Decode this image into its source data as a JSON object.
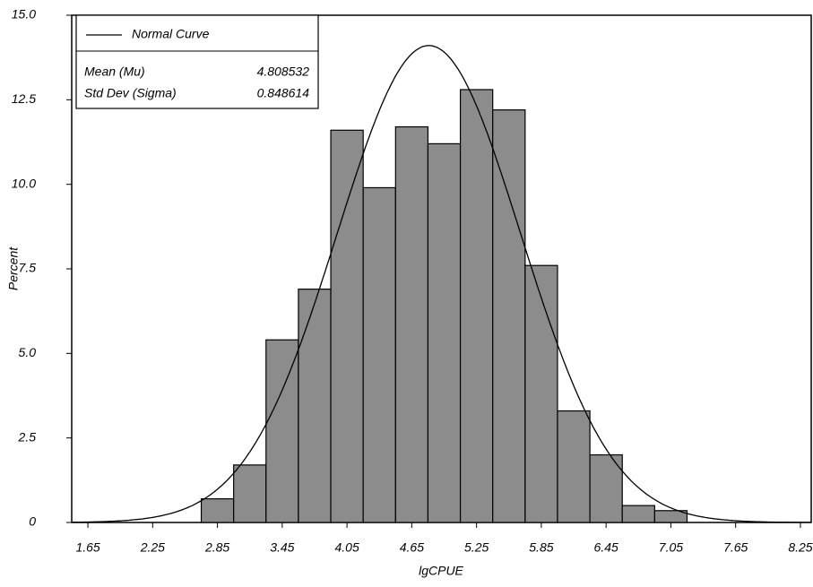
{
  "chart_data": {
    "type": "histogram",
    "x_label": "lgCPUE",
    "y_label": "Percent",
    "bins": [
      2.7,
      3.0,
      3.3,
      3.6,
      3.9,
      4.2,
      4.5,
      4.8,
      5.1,
      5.4,
      5.7,
      6.0,
      6.3,
      6.6,
      6.9,
      7.2
    ],
    "values": [
      0.7,
      1.7,
      5.4,
      6.9,
      11.6,
      9.9,
      11.7,
      11.2,
      12.8,
      12.2,
      7.6,
      3.3,
      2.0,
      0.5,
      0.35
    ],
    "color": "#8c8c8c",
    "xlim": [
      1.5,
      8.35
    ],
    "xticks": [
      1.65,
      2.25,
      2.85,
      3.45,
      4.05,
      4.65,
      5.25,
      5.85,
      6.45,
      7.05,
      7.65,
      8.25
    ],
    "ylim": [
      0,
      15
    ],
    "yticks": [
      0,
      2.5,
      {
        "value": 5,
        "label": "5.0"
      },
      7.5,
      {
        "value": 10,
        "label": "10.0"
      },
      12.5,
      {
        "value": 15,
        "label": "15.0"
      }
    ],
    "curve": {
      "name": "Normal Curve",
      "mean_label": "Mean (Mu)",
      "mean": 4.808532,
      "sd_label": "Std Dev (Sigma)",
      "sd": 0.848614
    }
  }
}
